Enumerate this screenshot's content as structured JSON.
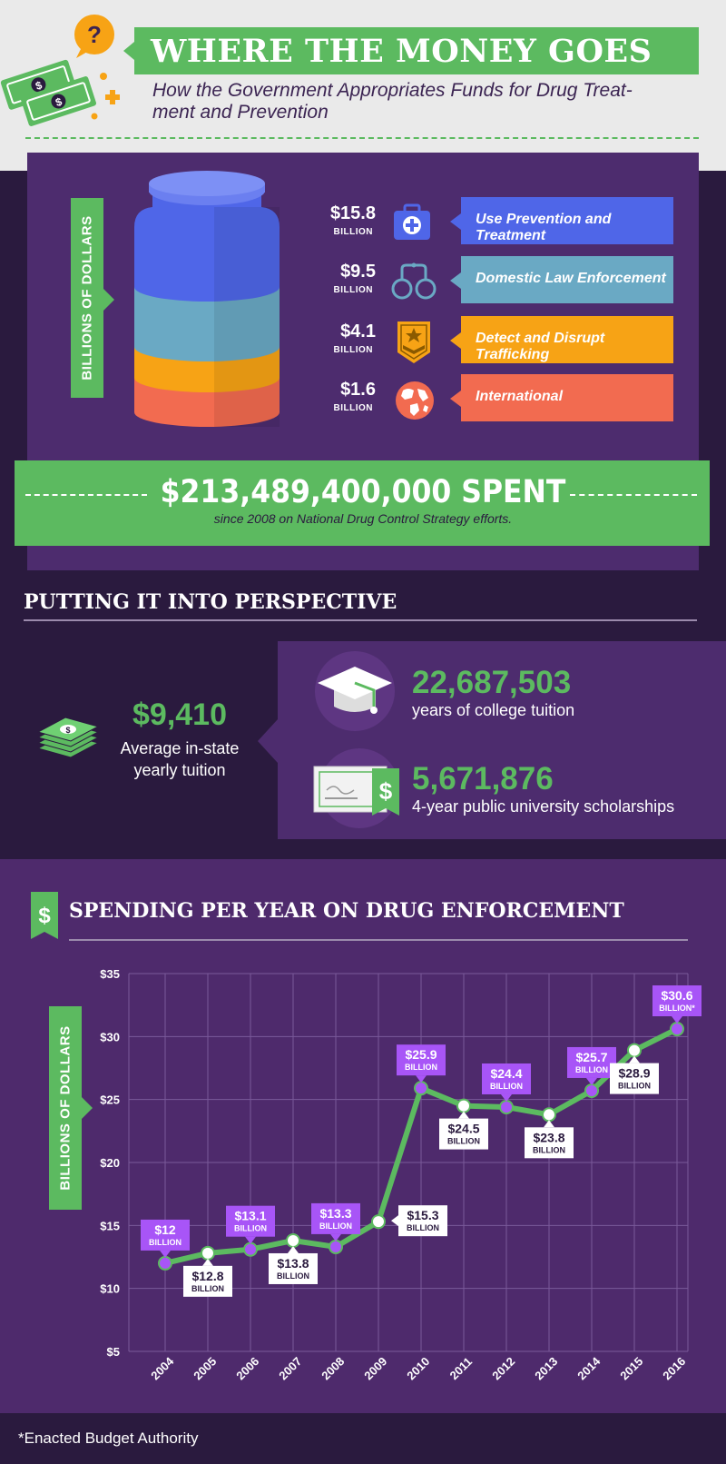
{
  "header": {
    "title": "WHERE THE MONEY GOES",
    "subtitle_line1": "How the Government Appropriates Funds for Drug Treat-",
    "subtitle_line2": "ment and Prevention"
  },
  "allocation": {
    "axis_label": "BILLIONS OF DOLLARS",
    "items": [
      {
        "amount": "$15.8",
        "unit": "BILLION",
        "label": "Use Prevention and Treatment",
        "icon": "first-aid-kit-icon",
        "color": "#4f66e8"
      },
      {
        "amount": "$9.5",
        "unit": "BILLION",
        "label": "Domestic Law Enforcement",
        "icon": "handcuffs-icon",
        "color": "#6aa9c4"
      },
      {
        "amount": "$4.1",
        "unit": "BILLION",
        "label": "Detect and Disrupt Trafficking",
        "icon": "military-badge-icon",
        "color": "#f7a315"
      },
      {
        "amount": "$1.6",
        "unit": "BILLION",
        "label": "International",
        "icon": "globe-icon",
        "color": "#f26b50"
      }
    ],
    "total": "$213,489,400,000 SPENT",
    "total_sub": "since 2008 on National Drug Control Strategy efforts."
  },
  "perspective": {
    "title": "PUTTING IT INTO PERSPECTIVE",
    "tuition_value": "$9,410",
    "tuition_label_line1": "Average in-state",
    "tuition_label_line2": "yearly tuition",
    "stat1_value": "22,687,503",
    "stat1_label": "years of college tuition",
    "stat2_value": "5,671,876",
    "stat2_label": "4-year public university scholarships"
  },
  "spending_chart": {
    "title": "SPENDING PER YEAR ON DRUG ENFORCEMENT",
    "dollar_icon": "$",
    "footnote": "*Enacted Budget Authority"
  },
  "chart_data": {
    "type": "line",
    "title": "SPENDING PER YEAR ON DRUG ENFORCEMENT",
    "ylabel": "BILLIONS OF DOLLARS",
    "xlabel": "",
    "ylim": [
      5,
      35
    ],
    "yticks": [
      "$5",
      "$10",
      "$15",
      "$20",
      "$25",
      "$30",
      "$35"
    ],
    "x": [
      "2004",
      "2005",
      "2006",
      "2007",
      "2008",
      "2009",
      "2010",
      "2011",
      "2012",
      "2013",
      "2014",
      "2015",
      "2016"
    ],
    "values": [
      12,
      12.8,
      13.1,
      13.8,
      13.3,
      15.3,
      25.9,
      24.5,
      24.4,
      23.8,
      25.7,
      28.9,
      30.6
    ],
    "labels": [
      "$12",
      "$12.8",
      "$13.1",
      "$13.8",
      "$13.3",
      "$15.3",
      "$25.9",
      "$24.5",
      "$24.4",
      "$23.8",
      "$25.7",
      "$28.9",
      "$30.6"
    ],
    "units": [
      "BILLION",
      "BILLION",
      "BILLION",
      "BILLION",
      "BILLION",
      "BILLION",
      "BILLION",
      "BILLION",
      "BILLION",
      "BILLION",
      "BILLION",
      "BILLION",
      "BILLION*"
    ],
    "grid": true,
    "colors": {
      "line": "#5cba60",
      "highlight": "#a855f7",
      "plot_bg": "#4e2a6c"
    }
  }
}
